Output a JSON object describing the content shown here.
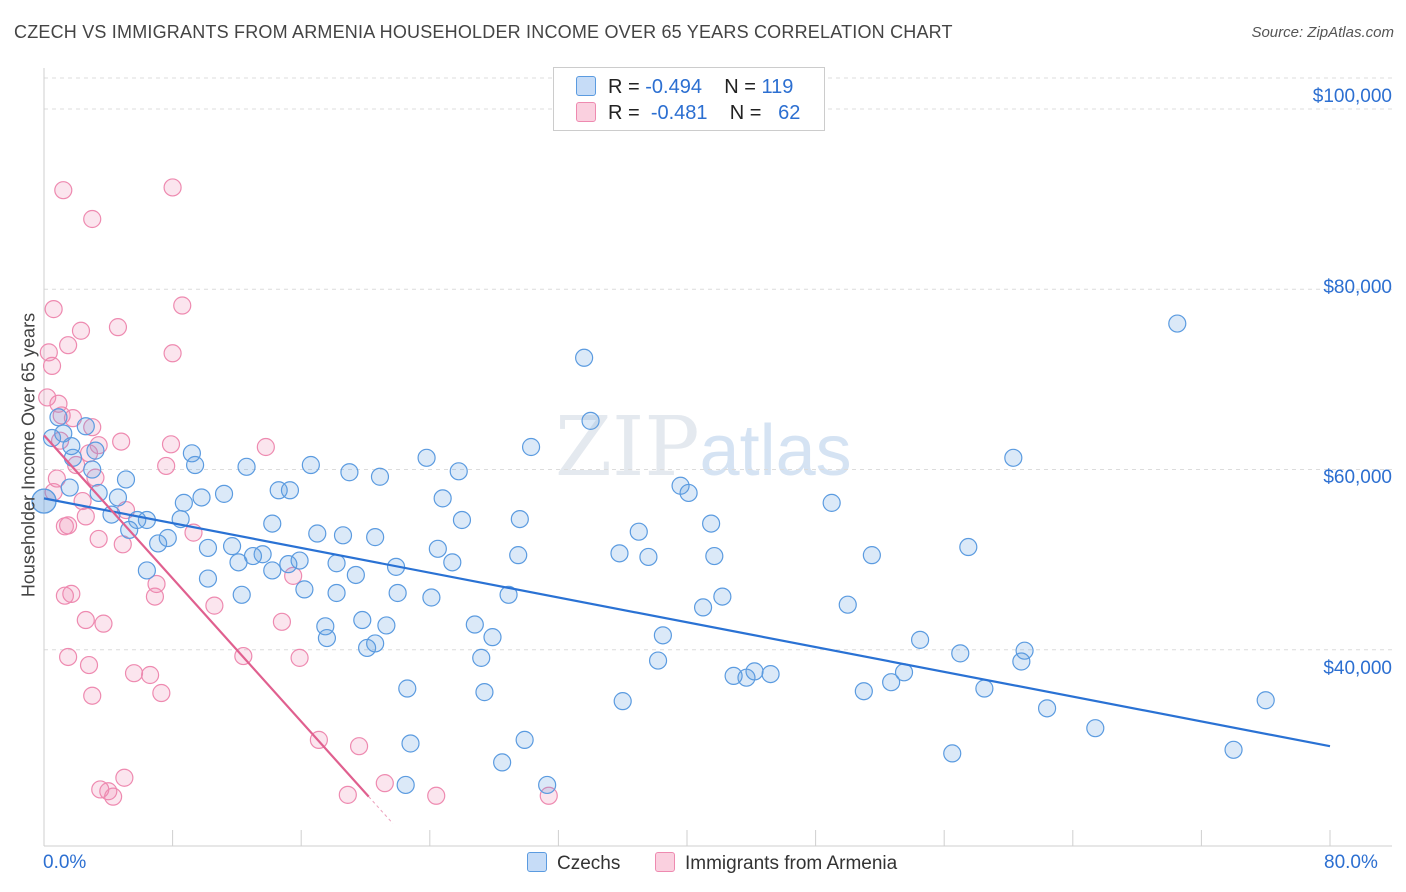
{
  "header": {
    "title": "CZECH VS IMMIGRANTS FROM ARMENIA HOUSEHOLDER INCOME OVER 65 YEARS CORRELATION CHART",
    "source": "Source: ZipAtlas.com"
  },
  "watermark": {
    "zip": "ZIP",
    "atlas": "atlas"
  },
  "stats_legend": [
    {
      "r_label": "R =",
      "r_value": "-0.494",
      "n_label": "N =",
      "n_value": "119"
    },
    {
      "r_label": "R =",
      "r_value": "-0.481",
      "n_label": "N =",
      "n_value": "62"
    }
  ],
  "chart_data": {
    "type": "scatter",
    "title": "CZECH VS IMMIGRANTS FROM ARMENIA HOUSEHOLDER INCOME OVER 65 YEARS CORRELATION CHART",
    "xlabel": "",
    "ylabel": "Householder Income Over 65 years",
    "xlim": [
      0,
      80
    ],
    "ylim": [
      20000,
      105000
    ],
    "x_tick_labels": [
      "0.0%",
      "80.0%"
    ],
    "y_ticks": [
      40000,
      60000,
      80000,
      100000
    ],
    "y_tick_labels": [
      "$40,000",
      "$60,000",
      "$80,000",
      "$100,000"
    ],
    "grid": "horizontal dashed",
    "legend_position": "bottom",
    "colors": {
      "czechs": "#5b9be0",
      "armenia": "#ee8ab0",
      "czechs_line": "#2a72d4",
      "armenia_line": "#e0608f"
    },
    "series": [
      {
        "name": "Czechs",
        "trend": {
          "x": [
            0,
            80
          ],
          "y": [
            56800,
            29300
          ]
        },
        "points": [
          [
            0.0,
            56500
          ],
          [
            0.5,
            63500
          ],
          [
            0.9,
            65800
          ],
          [
            1.2,
            64000
          ],
          [
            1.7,
            62600
          ],
          [
            2.6,
            64800
          ],
          [
            1.8,
            61300
          ],
          [
            3.2,
            62100
          ],
          [
            1.6,
            58000
          ],
          [
            3.0,
            60000
          ],
          [
            3.4,
            57400
          ],
          [
            5.1,
            58900
          ],
          [
            4.6,
            56900
          ],
          [
            4.2,
            55000
          ],
          [
            5.8,
            54400
          ],
          [
            5.3,
            53300
          ],
          [
            6.4,
            54400
          ],
          [
            7.1,
            51800
          ],
          [
            6.4,
            48800
          ],
          [
            7.7,
            52400
          ],
          [
            8.5,
            54500
          ],
          [
            9.2,
            61800
          ],
          [
            9.4,
            60500
          ],
          [
            8.7,
            56300
          ],
          [
            9.8,
            56900
          ],
          [
            10.2,
            51300
          ],
          [
            10.2,
            47900
          ],
          [
            11.2,
            57300
          ],
          [
            11.7,
            51500
          ],
          [
            12.1,
            49700
          ],
          [
            12.6,
            60300
          ],
          [
            12.3,
            46100
          ],
          [
            13.0,
            50400
          ],
          [
            13.6,
            50600
          ],
          [
            14.2,
            54000
          ],
          [
            14.6,
            57700
          ],
          [
            14.2,
            48800
          ],
          [
            15.3,
            57700
          ],
          [
            15.2,
            49500
          ],
          [
            15.9,
            49900
          ],
          [
            16.2,
            46700
          ],
          [
            16.6,
            60500
          ],
          [
            17.0,
            52900
          ],
          [
            17.5,
            42600
          ],
          [
            17.6,
            41300
          ],
          [
            18.2,
            49600
          ],
          [
            18.2,
            46300
          ],
          [
            18.6,
            52700
          ],
          [
            19.0,
            59700
          ],
          [
            19.4,
            48300
          ],
          [
            19.8,
            43300
          ],
          [
            20.1,
            40200
          ],
          [
            20.9,
            59200
          ],
          [
            20.6,
            52500
          ],
          [
            20.6,
            40700
          ],
          [
            21.3,
            42700
          ],
          [
            21.9,
            49200
          ],
          [
            22.0,
            46300
          ],
          [
            22.6,
            35700
          ],
          [
            22.8,
            29600
          ],
          [
            22.5,
            25000
          ],
          [
            23.8,
            61300
          ],
          [
            24.1,
            45800
          ],
          [
            24.5,
            51200
          ],
          [
            24.8,
            56800
          ],
          [
            25.4,
            49700
          ],
          [
            25.8,
            59800
          ],
          [
            26.0,
            54400
          ],
          [
            26.8,
            42800
          ],
          [
            27.2,
            39100
          ],
          [
            27.9,
            41400
          ],
          [
            27.4,
            35300
          ],
          [
            28.5,
            27500
          ],
          [
            28.9,
            46100
          ],
          [
            29.5,
            50500
          ],
          [
            29.6,
            54500
          ],
          [
            29.9,
            30000
          ],
          [
            30.3,
            62500
          ],
          [
            31.3,
            25000
          ],
          [
            33.6,
            72400
          ],
          [
            34.0,
            65400
          ],
          [
            35.8,
            50700
          ],
          [
            36.0,
            34300
          ],
          [
            37.0,
            53100
          ],
          [
            37.6,
            50300
          ],
          [
            38.2,
            38800
          ],
          [
            38.5,
            41600
          ],
          [
            39.6,
            58200
          ],
          [
            40.1,
            57400
          ],
          [
            41.0,
            44700
          ],
          [
            41.5,
            54000
          ],
          [
            41.7,
            50400
          ],
          [
            42.2,
            45900
          ],
          [
            42.9,
            37100
          ],
          [
            43.7,
            36900
          ],
          [
            44.2,
            37600
          ],
          [
            45.2,
            37300
          ],
          [
            49.0,
            56300
          ],
          [
            50.0,
            45000
          ],
          [
            51.0,
            35400
          ],
          [
            51.5,
            50500
          ],
          [
            52.7,
            36400
          ],
          [
            53.5,
            37500
          ],
          [
            54.5,
            41100
          ],
          [
            56.5,
            28500
          ],
          [
            57.0,
            39600
          ],
          [
            57.5,
            51400
          ],
          [
            58.5,
            35700
          ],
          [
            60.3,
            61300
          ],
          [
            60.8,
            38700
          ],
          [
            61.0,
            39900
          ],
          [
            62.4,
            33500
          ],
          [
            65.4,
            31300
          ],
          [
            70.5,
            76200
          ],
          [
            74.0,
            28900
          ],
          [
            76.0,
            34400
          ],
          [
            0.0,
            56500
          ]
        ]
      },
      {
        "name": "Immigrants from Armenia",
        "trend": {
          "x": [
            0,
            20.2
          ],
          "y": [
            63800,
            23700
          ]
        },
        "points": [
          [
            0.2,
            68000
          ],
          [
            0.3,
            73000
          ],
          [
            0.5,
            71500
          ],
          [
            0.6,
            77800
          ],
          [
            0.9,
            67300
          ],
          [
            1.0,
            63200
          ],
          [
            0.8,
            59000
          ],
          [
            0.6,
            57500
          ],
          [
            1.1,
            66000
          ],
          [
            1.2,
            91000
          ],
          [
            1.5,
            73800
          ],
          [
            1.8,
            65700
          ],
          [
            2.0,
            60500
          ],
          [
            1.5,
            53800
          ],
          [
            1.3,
            53700
          ],
          [
            1.7,
            46200
          ],
          [
            1.3,
            46000
          ],
          [
            1.5,
            39200
          ],
          [
            2.3,
            75400
          ],
          [
            2.4,
            56500
          ],
          [
            2.8,
            61800
          ],
          [
            2.6,
            54800
          ],
          [
            2.6,
            43300
          ],
          [
            2.8,
            38300
          ],
          [
            3.0,
            87800
          ],
          [
            3.0,
            64700
          ],
          [
            3.4,
            62700
          ],
          [
            3.2,
            59100
          ],
          [
            3.4,
            52300
          ],
          [
            3.0,
            34900
          ],
          [
            3.5,
            24500
          ],
          [
            4.0,
            24300
          ],
          [
            3.7,
            42900
          ],
          [
            4.3,
            23700
          ],
          [
            4.6,
            75800
          ],
          [
            4.8,
            63100
          ],
          [
            5.1,
            55500
          ],
          [
            4.9,
            51700
          ],
          [
            5.6,
            37400
          ],
          [
            5.0,
            25800
          ],
          [
            6.6,
            37200
          ],
          [
            7.0,
            47300
          ],
          [
            6.9,
            45900
          ],
          [
            7.3,
            35200
          ],
          [
            8.0,
            91300
          ],
          [
            8.6,
            78200
          ],
          [
            8.0,
            72900
          ],
          [
            7.9,
            62800
          ],
          [
            7.6,
            60400
          ],
          [
            9.3,
            53000
          ],
          [
            10.6,
            44900
          ],
          [
            12.4,
            39300
          ],
          [
            13.8,
            62500
          ],
          [
            14.8,
            43100
          ],
          [
            15.5,
            48200
          ],
          [
            15.9,
            39100
          ],
          [
            17.1,
            30000
          ],
          [
            18.9,
            23900
          ],
          [
            19.6,
            29300
          ],
          [
            21.2,
            25200
          ],
          [
            24.4,
            23800
          ],
          [
            31.4,
            23800
          ]
        ]
      }
    ]
  },
  "bottom_legend": [
    "Czechs",
    "Immigrants from Armenia"
  ],
  "x_axis": {
    "left": "0.0%",
    "right": "80.0%"
  },
  "y_axis": {
    "title": "Householder Income Over 65 years"
  }
}
